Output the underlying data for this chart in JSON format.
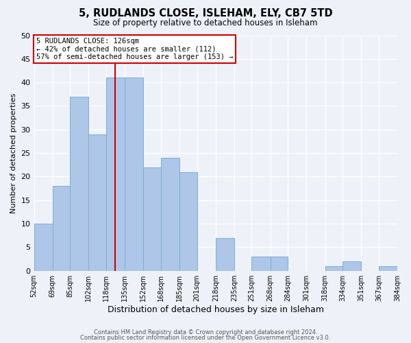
{
  "title": "5, RUDLANDS CLOSE, ISLEHAM, ELY, CB7 5TD",
  "subtitle": "Size of property relative to detached houses in Isleham",
  "xlabel": "Distribution of detached houses by size in Isleham",
  "ylabel": "Number of detached properties",
  "bin_edges": [
    52,
    69,
    85,
    102,
    118,
    135,
    152,
    168,
    185,
    201,
    218,
    235,
    251,
    268,
    284,
    301,
    318,
    334,
    351,
    367,
    384
  ],
  "bar_heights": [
    10,
    18,
    37,
    29,
    41,
    41,
    22,
    24,
    21,
    0,
    7,
    0,
    3,
    3,
    0,
    0,
    1,
    2,
    0,
    1
  ],
  "bar_color": "#aec6e8",
  "bar_edge_color": "#7aafd4",
  "vline_x": 126,
  "vline_color": "#cc0000",
  "annotation_box_text": "5 RUDLANDS CLOSE: 126sqm\n← 42% of detached houses are smaller (112)\n57% of semi-detached houses are larger (153) →",
  "ylim": [
    0,
    50
  ],
  "yticks": [
    0,
    5,
    10,
    15,
    20,
    25,
    30,
    35,
    40,
    45,
    50
  ],
  "footer_line1": "Contains HM Land Registry data © Crown copyright and database right 2024.",
  "footer_line2": "Contains public sector information licensed under the Open Government Licence v3.0.",
  "background_color": "#eef2f8",
  "tick_labels": [
    "52sqm",
    "69sqm",
    "85sqm",
    "102sqm",
    "118sqm",
    "135sqm",
    "152sqm",
    "168sqm",
    "185sqm",
    "201sqm",
    "218sqm",
    "235sqm",
    "251sqm",
    "268sqm",
    "284sqm",
    "301sqm",
    "318sqm",
    "334sqm",
    "351sqm",
    "367sqm",
    "384sqm"
  ]
}
